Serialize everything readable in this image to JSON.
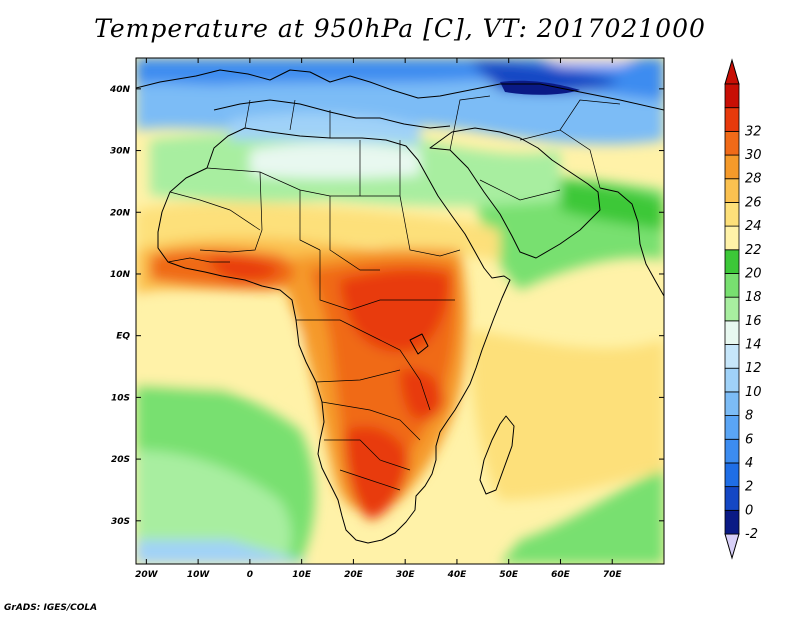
{
  "title": "Temperature at 950hPa [C], VT: 2017021000",
  "credit": "GrADS: IGES/COLA",
  "map": {
    "lon_range": [
      -22,
      80
    ],
    "lat_range": [
      -37,
      45
    ],
    "lon_ticks": [
      {
        "value": -20,
        "label": "20W"
      },
      {
        "value": -10,
        "label": "10W"
      },
      {
        "value": 0,
        "label": "0"
      },
      {
        "value": 10,
        "label": "10E"
      },
      {
        "value": 20,
        "label": "20E"
      },
      {
        "value": 30,
        "label": "30E"
      },
      {
        "value": 40,
        "label": "40E"
      },
      {
        "value": 50,
        "label": "50E"
      },
      {
        "value": 60,
        "label": "60E"
      },
      {
        "value": 70,
        "label": "70E"
      }
    ],
    "lat_ticks": [
      {
        "value": 40,
        "label": "40N"
      },
      {
        "value": 30,
        "label": "30N"
      },
      {
        "value": 20,
        "label": "20N"
      },
      {
        "value": 10,
        "label": "10N"
      },
      {
        "value": 0,
        "label": "EQ"
      },
      {
        "value": -10,
        "label": "10S"
      },
      {
        "value": -20,
        "label": "20S"
      },
      {
        "value": -30,
        "label": "30S"
      }
    ]
  },
  "colorbar": {
    "levels": [
      "-2",
      "0",
      "2",
      "4",
      "6",
      "8",
      "10",
      "12",
      "14",
      "16",
      "18",
      "20",
      "22",
      "24",
      "26",
      "28",
      "30",
      "32"
    ],
    "colors": [
      "#0a1a85",
      "#1447c4",
      "#1f6ee6",
      "#3c8cf0",
      "#5aa5f5",
      "#7cbcf6",
      "#a0d2f8",
      "#c6e6fa",
      "#e8f8f0",
      "#a8eea0",
      "#78e070",
      "#3cc838",
      "#fff2a8",
      "#fde07a",
      "#fbc150",
      "#f59a2a",
      "#f06a18",
      "#e83a0c",
      "#c80f05"
    ],
    "under_color": "#d8d0f8",
    "over_color": "#c80f05"
  },
  "field_regions": [
    {
      "name": "background-ocean",
      "value": 20
    },
    {
      "name": "north-africa-cool",
      "value": 9
    },
    {
      "name": "mediterranean-cold",
      "value": 3
    },
    {
      "name": "sahara-mid",
      "value": 13
    },
    {
      "name": "sahel-warm",
      "value": 23
    },
    {
      "name": "equatorial-ocean",
      "value": 21
    },
    {
      "name": "south-atlantic-green",
      "value": 17
    },
    {
      "name": "central-africa-hot",
      "value": 29
    },
    {
      "name": "west-africa-hot",
      "value": 30
    },
    {
      "name": "southern-africa-hot",
      "value": 29
    },
    {
      "name": "indian-ocean-warm",
      "value": 23
    }
  ]
}
